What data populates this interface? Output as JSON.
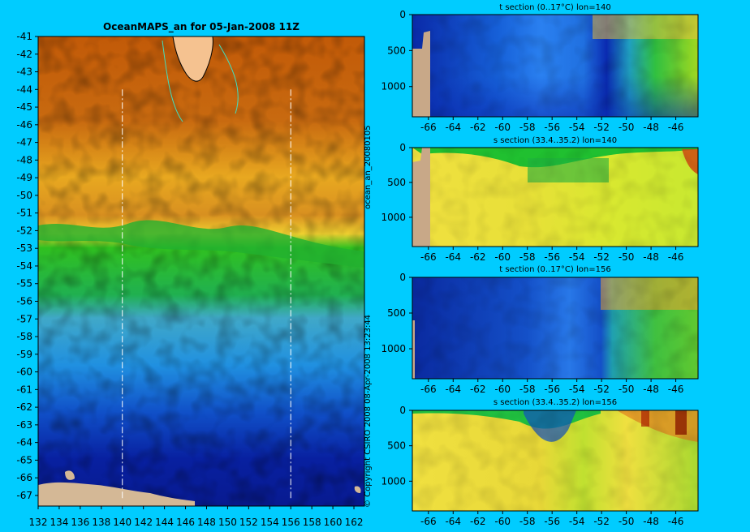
{
  "map": {
    "title": "OceanMAPS_an for 05-Jan-2008 11Z",
    "xlim": [
      132,
      163
    ],
    "ylim": [
      -67.6,
      -41
    ],
    "xticks": [
      "132",
      "134",
      "136",
      "138",
      "140",
      "142",
      "144",
      "146",
      "148",
      "150",
      "152",
      "154",
      "156",
      "158",
      "160",
      "162"
    ],
    "yticks": [
      "-41",
      "-42",
      "-43",
      "-44",
      "-45",
      "-46",
      "-47",
      "-48",
      "-49",
      "-50",
      "-51",
      "-52",
      "-53",
      "-54",
      "-55",
      "-56",
      "-57",
      "-58",
      "-59",
      "-60",
      "-61",
      "-62",
      "-63",
      "-64",
      "-65",
      "-66",
      "-67"
    ],
    "section_lines_lon": [
      140,
      156
    ],
    "section_lines_lat": [
      -44,
      -67.2
    ]
  },
  "side_text": {
    "run_id": "ocean_an_20080105",
    "copyright": "© Copyright CSIRO 2008   08-Apr-2008 13:23:44"
  },
  "chart_data": [
    {
      "type": "heatmap",
      "title": "t section (0..17°C) lon=140",
      "xlim": [
        -67.3,
        -44.2
      ],
      "ylim": [
        1420,
        0
      ],
      "xticks": [
        "-66",
        "-64",
        "-62",
        "-60",
        "-58",
        "-56",
        "-54",
        "-52",
        "-50",
        "-48",
        "-46"
      ],
      "yticks": [
        "0",
        "500",
        "1000"
      ]
    },
    {
      "type": "heatmap",
      "title": "s section (33.4..35.2) lon=140",
      "xlim": [
        -67.3,
        -44.2
      ],
      "ylim": [
        1420,
        0
      ],
      "xticks": [
        "-66",
        "-64",
        "-62",
        "-60",
        "-58",
        "-56",
        "-54",
        "-52",
        "-50",
        "-48",
        "-46"
      ],
      "yticks": [
        "0",
        "500",
        "1000"
      ]
    },
    {
      "type": "heatmap",
      "title": "t section (0..17°C) lon=156",
      "xlim": [
        -67.3,
        -44.2
      ],
      "ylim": [
        1420,
        0
      ],
      "xticks": [
        "-66",
        "-64",
        "-62",
        "-60",
        "-58",
        "-56",
        "-54",
        "-52",
        "-50",
        "-48",
        "-46"
      ],
      "yticks": [
        "0",
        "500",
        "1000"
      ]
    },
    {
      "type": "heatmap",
      "title": "s section (33.4..35.2) lon=156",
      "xlim": [
        -67.3,
        -44.2
      ],
      "ylim": [
        1420,
        0
      ],
      "xticks": [
        "-66",
        "-64",
        "-62",
        "-60",
        "-58",
        "-56",
        "-54",
        "-52",
        "-50",
        "-48",
        "-46"
      ],
      "yticks": [
        "0",
        "500",
        "1000"
      ]
    }
  ],
  "colors": {
    "background": "#00ccff",
    "land": "#d4b896",
    "warm": "#a84400",
    "cold": "#00108a"
  }
}
